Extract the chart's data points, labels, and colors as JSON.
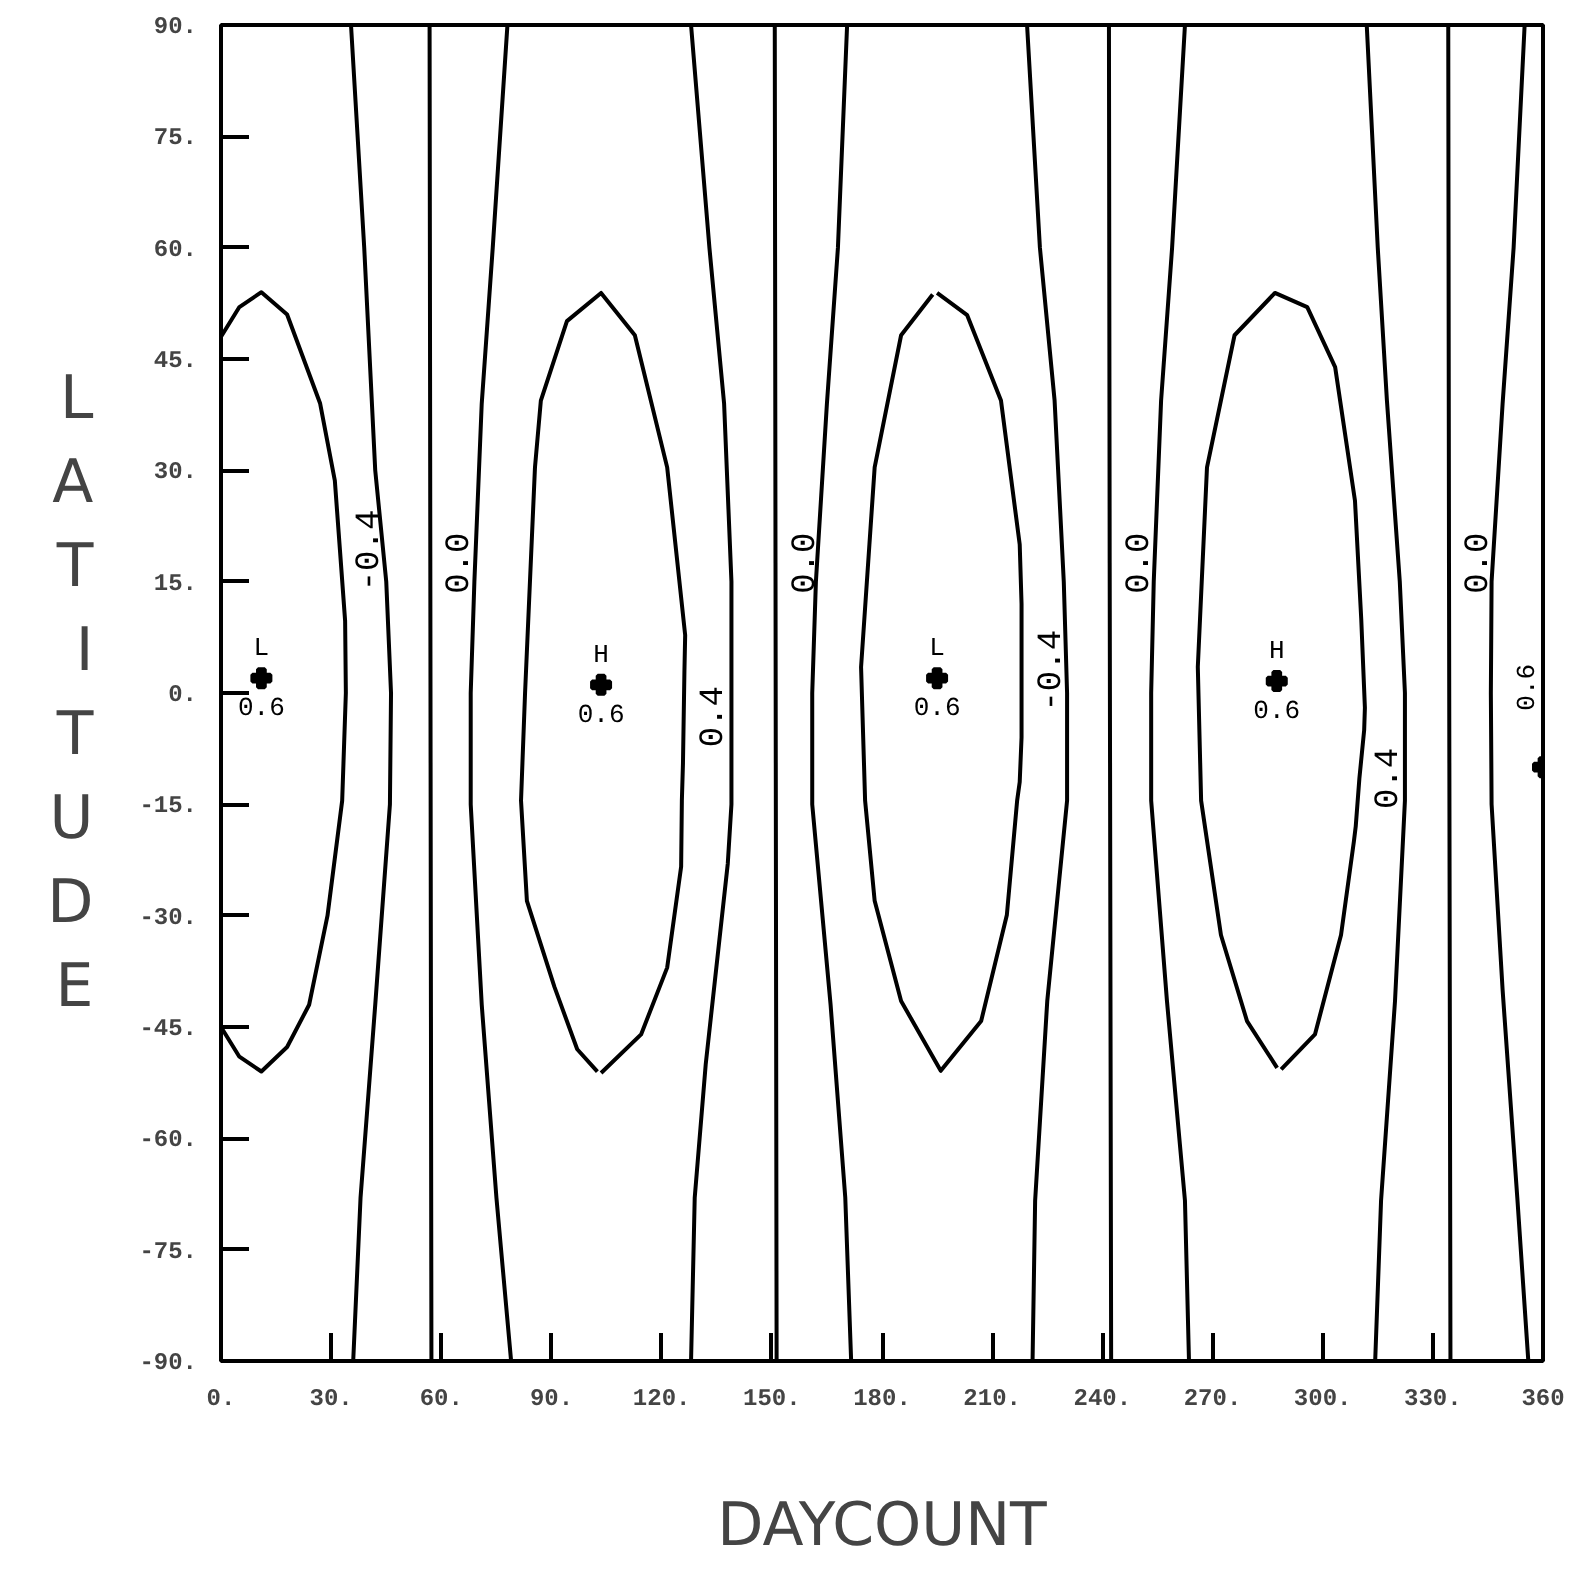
{
  "chart_data": {
    "type": "line",
    "xlabel": "DAYCOUNT",
    "ylabel": "LATITUDE",
    "xlim": [
      0,
      360
    ],
    "ylim": [
      -90,
      90
    ],
    "xticks": [
      {
        "value": 0,
        "label": "0."
      },
      {
        "value": 30,
        "label": "30."
      },
      {
        "value": 60,
        "label": "60."
      },
      {
        "value": 90,
        "label": "90."
      },
      {
        "value": 120,
        "label": "120."
      },
      {
        "value": 150,
        "label": "150."
      },
      {
        "value": 180,
        "label": "180."
      },
      {
        "value": 210,
        "label": "210."
      },
      {
        "value": 240,
        "label": "240."
      },
      {
        "value": 270,
        "label": "270."
      },
      {
        "value": 300,
        "label": "300."
      },
      {
        "value": 330,
        "label": "330."
      },
      360
    ],
    "yticks": [
      {
        "value": -90,
        "label": "-90."
      },
      {
        "value": -75,
        "label": "-75."
      },
      {
        "value": -60,
        "label": "-60."
      },
      {
        "value": -45,
        "label": "-45."
      },
      {
        "value": -30,
        "label": "-30."
      },
      {
        "value": -15,
        "label": "-15."
      },
      {
        "value": 0,
        "label": "0."
      },
      {
        "value": 15,
        "label": "15."
      },
      {
        "value": 30,
        "label": "30."
      },
      {
        "value": 45,
        "label": "45."
      },
      {
        "value": 60,
        "label": "60."
      },
      {
        "value": 75,
        "label": "75."
      },
      {
        "value": 90,
        "label": "90."
      }
    ],
    "series": [
      {
        "color": "#000000",
        "x": [
          0,
          5,
          11,
          18,
          27,
          31,
          32.4,
          33.8,
          34,
          33,
          29,
          24,
          18,
          11,
          5,
          0
        ],
        "values": [
          48,
          52,
          54,
          51,
          39,
          28.6,
          19.2,
          9.7,
          0,
          -14.5,
          -30,
          -42,
          -47.7,
          -51,
          -49,
          -45
        ]
      },
      {
        "color": "#000000",
        "x": [
          56.8,
          57,
          57.3
        ],
        "values": [
          90,
          17.5,
          -90
        ]
      },
      {
        "color": "#000000",
        "x": [
          35.4,
          39,
          42,
          45,
          46.3,
          46,
          42,
          38,
          36
        ],
        "values": [
          90,
          60,
          30,
          15,
          0,
          -15,
          -42,
          -68,
          -90
        ]
      },
      {
        "color": "#000000",
        "x": [
          78,
          74,
          71,
          69,
          68,
          68,
          71,
          75,
          79
        ],
        "values": [
          90,
          60,
          39,
          15,
          0,
          -15,
          -42,
          -68,
          -90
        ]
      },
      {
        "color": "#000000",
        "x": [
          103.5,
          114.4,
          121.5,
          125.3,
          125.5,
          125.8,
          126,
          126.2,
          126.4,
          121.5,
          112.7,
          103.5,
          94.2,
          87.1,
          85.5,
          82.8,
          81.7,
          83.3,
          90.8,
          97,
          102.5
        ],
        "values": [
          -51.2,
          -46,
          -37,
          -23.4,
          -14.5,
          -9.5,
          -3.2,
          3,
          7.8,
          30.4,
          48.2,
          53.9,
          50.1,
          39.4,
          30.4,
          0,
          -14.5,
          -28,
          -39.6,
          -48,
          -51
        ]
      },
      {
        "color": "#000000",
        "x": [
          128,
          133,
          137,
          139,
          139,
          139,
          138,
          132,
          129,
          128
        ],
        "values": [
          90,
          60,
          39,
          15,
          0,
          -15,
          -23,
          -50,
          -68,
          -90
        ]
      },
      {
        "color": "#000000",
        "x": [
          150.8,
          151,
          151.3
        ],
        "values": [
          90,
          17.5,
          -90
        ]
      },
      {
        "color": "#000000",
        "x": [
          170.5,
          168,
          165,
          162,
          161,
          161,
          166,
          170,
          171.6
        ],
        "values": [
          90,
          60,
          39,
          15,
          0,
          -15,
          -42,
          -68,
          -90
        ]
      },
      {
        "color": "#000000",
        "x": [
          195,
          203.2,
          212.4,
          217.5,
          218,
          218,
          218,
          217.5,
          216.8,
          214,
          207,
          196,
          185.2,
          178,
          175.4,
          174.3,
          178,
          185.2,
          193.8
        ],
        "values": [
          53.9,
          50.9,
          39.4,
          20,
          12,
          3,
          -6,
          -12,
          -14.5,
          -29.9,
          -44.2,
          -50.9,
          -41.5,
          -28,
          -14.5,
          3.5,
          30.4,
          48.2,
          53.7
        ]
      },
      {
        "color": "#000000",
        "x": [
          219.5,
          223,
          227,
          229.5,
          230.4,
          230.4,
          225,
          221.7,
          221
        ],
        "values": [
          90,
          60,
          39.4,
          15,
          0,
          -14.5,
          -41.5,
          -68.4,
          -90
        ]
      },
      {
        "color": "#000000",
        "x": [
          241.8,
          242,
          242.4
        ],
        "values": [
          90,
          17.5,
          -90
        ]
      },
      {
        "color": "#000000",
        "x": [
          262.5,
          259,
          256,
          254,
          253.3,
          253.3,
          257.6,
          262.5,
          263.6
        ],
        "values": [
          90,
          60,
          39.4,
          15,
          0,
          -14.5,
          -41.5,
          -68.4,
          -90
        ]
      },
      {
        "color": "#000000",
        "x": [
          288.7,
          297.9,
          305,
          308.5,
          309,
          310,
          311.3,
          311.5,
          310.5,
          308.8,
          303.4,
          295.8,
          287,
          276,
          268.5,
          266,
          266.9,
          272.3,
          279.4,
          287.6
        ],
        "values": [
          -50.7,
          -46,
          -32.6,
          -20,
          -18,
          -11.5,
          -5,
          -2,
          10,
          25.9,
          43.9,
          52,
          53.9,
          48.2,
          30.4,
          3.5,
          -14.5,
          -32.6,
          -44.2,
          -50.5
        ]
      },
      {
        "color": "#000000",
        "x": [
          312,
          315,
          317.5,
          321,
          322.4,
          322.4,
          319.7,
          315.9,
          314.3
        ],
        "values": [
          90,
          60,
          39.4,
          15,
          0,
          -14.5,
          -41.5,
          -68.4,
          -90
        ]
      },
      {
        "color": "#000000",
        "x": [
          334.2,
          334.4,
          334.8
        ],
        "values": [
          90,
          17.5,
          -90
        ]
      },
      {
        "color": "#000000",
        "x": [
          355,
          352,
          349,
          346,
          345.8,
          346,
          349,
          353,
          356
        ],
        "values": [
          90,
          60,
          39,
          15,
          0,
          -15,
          -40,
          -68,
          -90
        ]
      },
      {
        "type": "scatter",
        "marker": "cross",
        "color": "#000000",
        "x": [
          11,
          103.5,
          195,
          287.5,
          360
        ],
        "values": [
          2,
          1.1,
          2,
          1.6,
          -10
        ]
      }
    ],
    "annotations": [
      {
        "text": "-0.4",
        "x": 32.4,
        "y": 19.2
      },
      {
        "text": "0.0",
        "x": 57,
        "y": 17.5
      },
      {
        "text": "0.4",
        "x": 126,
        "y": -3.2
      },
      {
        "text": "0.0",
        "x": 151,
        "y": 17.5
      },
      {
        "text": "-0.4",
        "x": 218,
        "y": 3
      },
      {
        "text": "0.0",
        "x": 242,
        "y": 17.5
      },
      {
        "text": "0.4",
        "x": 310,
        "y": -11.5
      },
      {
        "text": "0.0",
        "x": 334.4,
        "y": 17.5
      },
      {
        "text": "L",
        "x": 11,
        "y": 2
      },
      {
        "text": "0.6",
        "x": 11,
        "y": 2
      },
      {
        "text": "H",
        "x": 103.5,
        "y": 1.1
      },
      {
        "text": "0.6",
        "x": 103.5,
        "y": 1.1
      },
      {
        "text": "L",
        "x": 195,
        "y": 2
      },
      {
        "text": "0.6",
        "x": 195,
        "y": 2
      },
      {
        "text": "H",
        "x": 287.5,
        "y": 1.6
      },
      {
        "text": "0.6",
        "x": 287.5,
        "y": 1.6
      },
      {
        "text": "0.6",
        "x": 360,
        "y": -10
      }
    ]
  }
}
